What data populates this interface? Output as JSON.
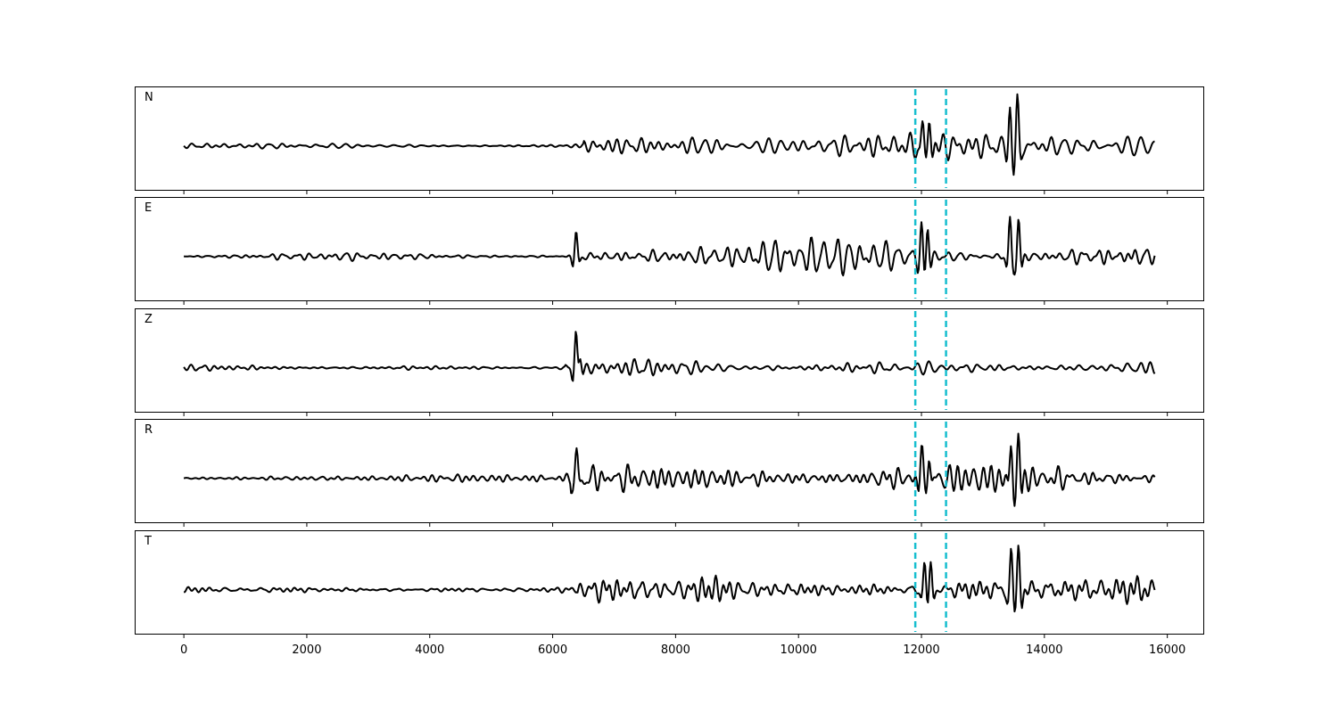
{
  "chart_data": {
    "type": "line",
    "title": "",
    "xlabel": "",
    "ylabel": "",
    "xlim": [
      -800,
      16600
    ],
    "x_ticks": [
      0,
      2000,
      4000,
      6000,
      8000,
      10000,
      12000,
      14000,
      16000
    ],
    "x_tick_labels": [
      "0",
      "2000",
      "4000",
      "6000",
      "8000",
      "10000",
      "12000",
      "14000",
      "16000"
    ],
    "trace_x_range": [
      0,
      15800
    ],
    "grid": false,
    "line_color": "#000000",
    "marker_color": "#17becf",
    "vertical_markers": [
      11900,
      12400
    ],
    "panels": [
      {
        "label": "N",
        "noise_amplitude": 0.08,
        "onset": 6500,
        "coda_amplitude": 0.32,
        "pulses": [
          {
            "x": 12020,
            "amplitude": 0.55
          },
          {
            "x": 12130,
            "amplitude": 0.6
          },
          {
            "x": 13440,
            "amplitude": 0.85
          },
          {
            "x": 13560,
            "amplitude": 0.95
          }
        ]
      },
      {
        "label": "E",
        "noise_amplitude": 0.07,
        "onset": 6300,
        "coda_amplitude": 0.28,
        "pulses": [
          {
            "x": 6380,
            "amplitude": 0.55
          },
          {
            "x": 12000,
            "amplitude": 0.65
          },
          {
            "x": 12100,
            "amplitude": 0.7
          },
          {
            "x": 13440,
            "amplitude": 0.85
          },
          {
            "x": 13580,
            "amplitude": 0.85
          }
        ]
      },
      {
        "label": "Z",
        "noise_amplitude": 0.07,
        "onset": 6200,
        "coda_amplitude": 0.22,
        "pulses": [
          {
            "x": 6380,
            "amplitude": 1.0
          },
          {
            "x": 6440,
            "amplitude": 0.45
          }
        ]
      },
      {
        "label": "R",
        "noise_amplitude": 0.07,
        "onset": 6300,
        "coda_amplitude": 0.28,
        "pulses": [
          {
            "x": 6390,
            "amplitude": 0.55
          },
          {
            "x": 12000,
            "amplitude": 0.7
          },
          {
            "x": 12120,
            "amplitude": 0.7
          },
          {
            "x": 13460,
            "amplitude": 0.85
          },
          {
            "x": 13580,
            "amplitude": 0.85
          }
        ]
      },
      {
        "label": "T",
        "noise_amplitude": 0.07,
        "onset": 6400,
        "coda_amplitude": 0.32,
        "pulses": [
          {
            "x": 12050,
            "amplitude": 0.6
          },
          {
            "x": 12150,
            "amplitude": 0.65
          },
          {
            "x": 13460,
            "amplitude": 0.85
          },
          {
            "x": 13580,
            "amplitude": 0.95
          }
        ]
      }
    ]
  }
}
